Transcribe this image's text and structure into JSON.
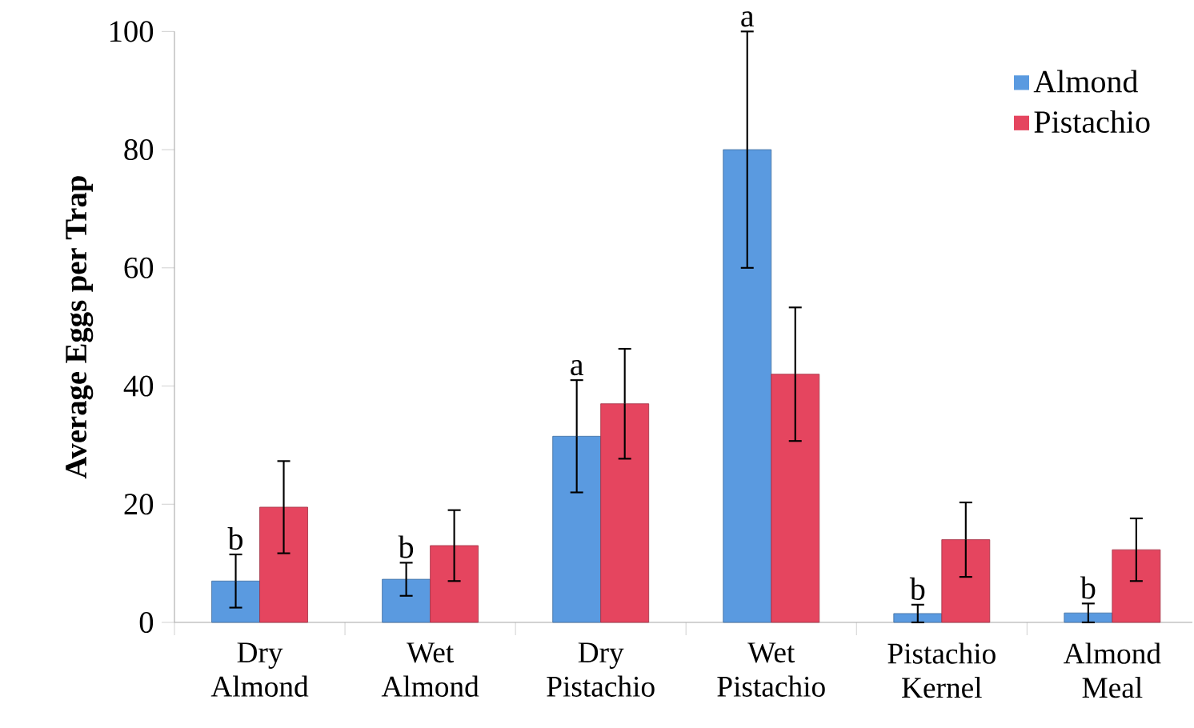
{
  "chart_data": {
    "type": "bar",
    "ylabel": "Average Eggs per Trap",
    "categories": [
      "Dry Almond",
      "Wet Almond",
      "Dry Pistachio",
      "Wet Pistachio",
      "Pistachio Kernel",
      "Almond Meal"
    ],
    "series": [
      {
        "name": "Almond",
        "color": "#5a9ae0",
        "values": [
          7,
          7.3,
          31.5,
          80,
          1.5,
          1.6
        ],
        "errors": [
          4.5,
          2.8,
          9.5,
          20,
          1.5,
          1.6
        ]
      },
      {
        "name": "Pistachio",
        "color": "#e5455f",
        "values": [
          19.5,
          13,
          37,
          42,
          14,
          12.3
        ],
        "errors": [
          7.8,
          6,
          9.3,
          11.3,
          6.3,
          5.3
        ]
      }
    ],
    "annotations": [
      "b",
      "b",
      "a",
      "a",
      "b",
      "b"
    ],
    "ylim": [
      0,
      100
    ],
    "yticks": [
      0,
      20,
      40,
      60,
      80,
      100
    ],
    "grid": false,
    "legend": "top right"
  }
}
